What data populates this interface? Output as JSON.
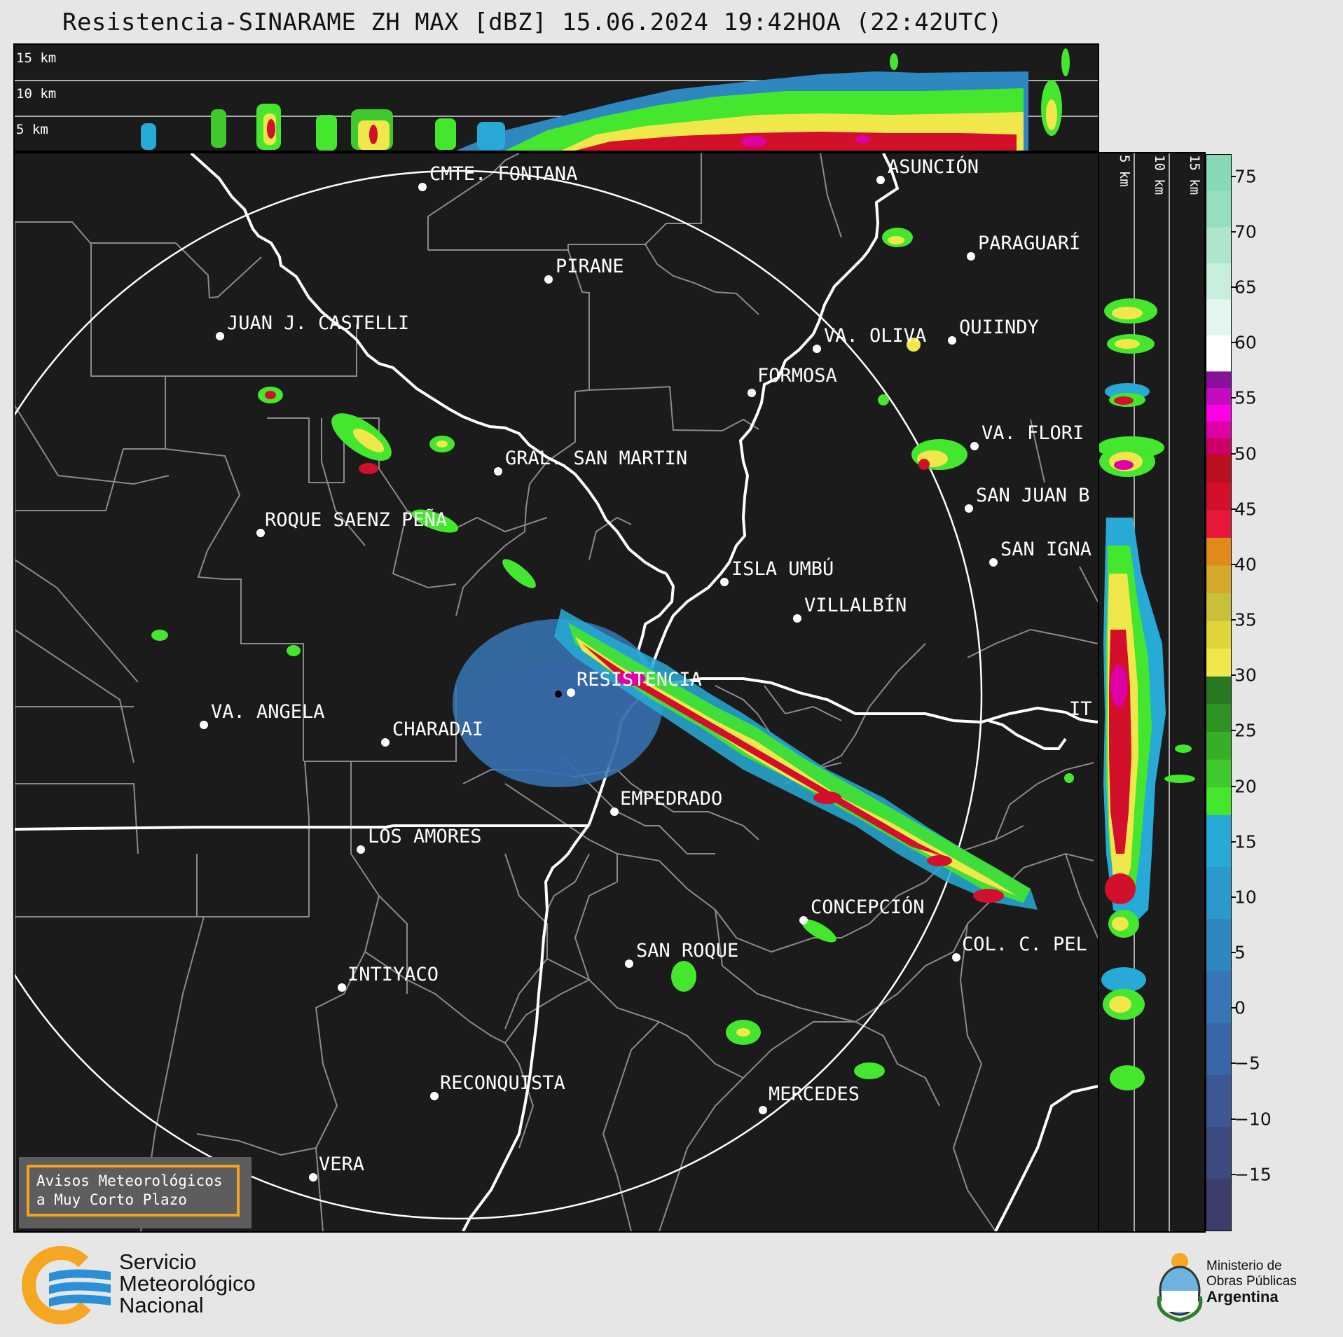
{
  "title": "Resistencia-SINARAME ZH MAX [dBZ] 15.06.2024 19:42HOA (22:42UTC)",
  "height_labels": [
    "15 km",
    "10 km",
    "5 km"
  ],
  "cities": [
    {
      "name": "CMTE. FONTANA"
    },
    {
      "name": "ASUNCIÓN"
    },
    {
      "name": "PARAGUARÍ"
    },
    {
      "name": "PIRANE"
    },
    {
      "name": "JUAN J. CASTELLI"
    },
    {
      "name": "VA. OLIVA"
    },
    {
      "name": "QUIINDY"
    },
    {
      "name": "FORMOSA"
    },
    {
      "name": "VA. FLORI"
    },
    {
      "name": "GRAL. SAN MARTIN"
    },
    {
      "name": "SAN JUAN B"
    },
    {
      "name": "ROQUE SAENZ PEÑA"
    },
    {
      "name": "SAN IGNA"
    },
    {
      "name": "ISLA UMBÚ"
    },
    {
      "name": "VILLALBÍN"
    },
    {
      "name": "RESISTENCIA"
    },
    {
      "name": "VA. ANGELA"
    },
    {
      "name": "CHARADAI"
    },
    {
      "name": "IT"
    },
    {
      "name": "EMPEDRADO"
    },
    {
      "name": "LOS AMORES"
    },
    {
      "name": "CONCEPCIÓN"
    },
    {
      "name": "COL. C. PEL"
    },
    {
      "name": "SAN ROQUE"
    },
    {
      "name": "INTIYACO"
    },
    {
      "name": "RECONQUISTA"
    },
    {
      "name": "MERCEDES"
    },
    {
      "name": "VERA"
    }
  ],
  "colorbar": {
    "range": [
      -20,
      77
    ],
    "ticks": [
      "75",
      "70",
      "65",
      "60",
      "55",
      "50",
      "45",
      "40",
      "35",
      "30",
      "25",
      "20",
      "15",
      "10",
      "5",
      "0",
      "−5",
      "−10",
      "−15"
    ],
    "tick_values": [
      75,
      70,
      65,
      60,
      55,
      50,
      45,
      40,
      35,
      30,
      25,
      20,
      15,
      10,
      5,
      0,
      -5,
      -10,
      -15
    ],
    "bands": [
      {
        "from": -20,
        "to": 17.5,
        "colors": [
          "#3b3e6a",
          "#3c4a80",
          "#3d5794",
          "#3a66a8",
          "#3676b4",
          "#2f87c0",
          "#2a99cc",
          "#27abd6"
        ]
      },
      {
        "from": 17.5,
        "to": 30,
        "colors": [
          "#44e62e",
          "#3fc92c",
          "#37ae28",
          "#2f9324",
          "#277820"
        ]
      },
      {
        "from": 30,
        "to": 42.5,
        "colors": [
          "#f0e84a",
          "#e0d438",
          "#c9c03a",
          "#d4a92a",
          "#e08a1c"
        ]
      },
      {
        "from": 42.5,
        "to": 50,
        "colors": [
          "#e8183a",
          "#d2102c",
          "#b90f1f"
        ]
      },
      {
        "from": 50,
        "to": 57.5,
        "colors": [
          "#cc0066",
          "#e000a8",
          "#ff00e6",
          "#c40cbf",
          "#8a0f9a"
        ]
      },
      {
        "from": 57.5,
        "to": 77,
        "colors": [
          "#ffffff",
          "#e3f6ee",
          "#c8eedd",
          "#aee6cc",
          "#96dfbd",
          "#86d9b3"
        ]
      }
    ]
  },
  "notice": {
    "line1": "Avisos Meteorológicos",
    "line2": "a Muy Corto Plazo"
  },
  "logos": {
    "smn": {
      "line1": "Servicio",
      "line2": "Meteorológico",
      "line3": "Nacional"
    },
    "gov": {
      "line1": "Ministerio de",
      "line2": "Obras Públicas",
      "line3": "Argentina"
    }
  }
}
